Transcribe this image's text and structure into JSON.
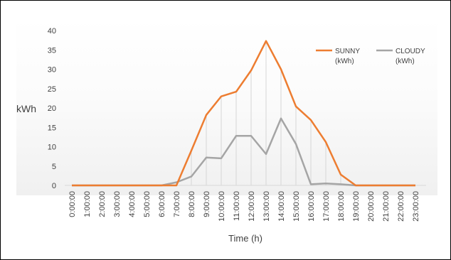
{
  "chart_data": {
    "type": "line",
    "title": "",
    "xlabel": "Time (h)",
    "ylabel": "kWh",
    "ylim": [
      0,
      40
    ],
    "yticks": [
      0,
      5,
      10,
      15,
      20,
      25,
      30,
      35,
      40
    ],
    "grid": "vertical-drop-lines",
    "legend_position": "top-right",
    "categories": [
      "0:00:00",
      "1:00:00",
      "2:00:00",
      "3:00:00",
      "4:00:00",
      "5:00:00",
      "6:00:00",
      "7:00:00",
      "8:00:00",
      "9:00:00",
      "10:00:00",
      "11:00:00",
      "12:00:00",
      "13:00:00",
      "14:00:00",
      "15:00:00",
      "16:00:00",
      "17:00:00",
      "18:00:00",
      "19:00:00",
      "20:00:00",
      "21:00:00",
      "22:00:00",
      "23:00:00"
    ],
    "series": [
      {
        "name": "SUNNY",
        "unit": "(kWh)",
        "color": "#ed7d31",
        "values": [
          0,
          0,
          0,
          0,
          0,
          0,
          0,
          0,
          9,
          18.2,
          23,
          24.2,
          29.7,
          37.3,
          30,
          20.4,
          16.9,
          11.2,
          2.8,
          0,
          0,
          0,
          0,
          0
        ]
      },
      {
        "name": "CLOUDY",
        "unit": "(kWh)",
        "color": "#a5a5a5",
        "values": [
          0,
          0,
          0,
          0,
          0,
          0,
          0,
          0.8,
          2.3,
          7.2,
          7,
          12.8,
          12.8,
          8.1,
          17.3,
          10.7,
          0.3,
          0.5,
          0.3,
          0,
          0,
          0,
          0,
          0
        ]
      }
    ]
  }
}
